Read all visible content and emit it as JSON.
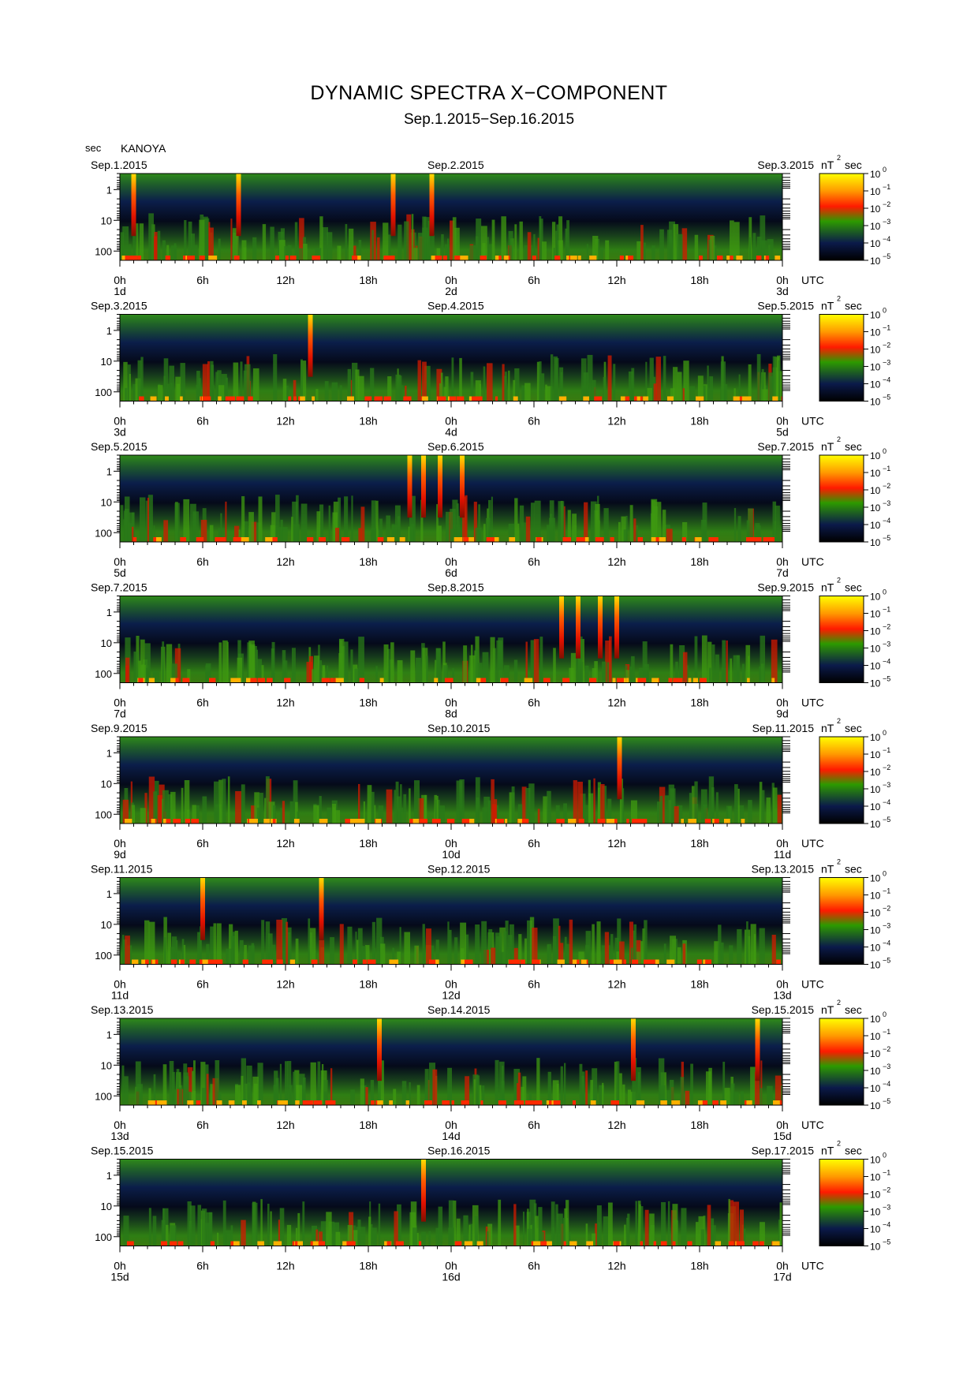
{
  "title": "DYNAMIC SPECTRA X−COMPONENT",
  "subtitle": "Sep.1.2015−Sep.16.2015",
  "unit_label": "sec",
  "station": "KANOYA",
  "colorbar": {
    "unit": "nT",
    "unit_exp": "2",
    "unit_suffix": "sec",
    "labels": [
      "10",
      "10",
      "10",
      "10",
      "10",
      "10"
    ],
    "exponents": [
      "0",
      "−1",
      "−2",
      "−3",
      "−4",
      "−5"
    ],
    "colors": [
      "#ffff00",
      "#ff9a00",
      "#ff1a00",
      "#2d9a00",
      "#0b1a4a",
      "#000000"
    ]
  },
  "chart_data": {
    "type": "heatmap",
    "y_scale": "log",
    "y_ticks": [
      "1",
      "10",
      "100"
    ],
    "x_ticks": [
      "0h",
      "6h",
      "12h",
      "18h",
      "0h",
      "6h",
      "12h",
      "18h",
      "0h"
    ],
    "x_unit": "UTC",
    "panels": [
      {
        "left_date": "Sep.1.2015",
        "mid_date": "Sep.2.2015",
        "right_date": "Sep.3.2015",
        "day_start": "1d",
        "day_mid": "2d",
        "day_end": "3d",
        "events": [
          1.0,
          8.6,
          19.8,
          22.6
        ]
      },
      {
        "left_date": "Sep.3.2015",
        "mid_date": "Sep.4.2015",
        "right_date": "Sep.5.2015",
        "day_start": "3d",
        "day_mid": "4d",
        "day_end": "5d",
        "events": [
          13.8
        ]
      },
      {
        "left_date": "Sep.5.2015",
        "mid_date": "Sep.6.2015",
        "right_date": "Sep.7.2015",
        "day_start": "5d",
        "day_mid": "6d",
        "day_end": "7d",
        "events": [
          21.0,
          22.0,
          23.2,
          24.8
        ]
      },
      {
        "left_date": "Sep.7.2015",
        "mid_date": "Sep.8.2015",
        "right_date": "Sep.9.2015",
        "day_start": "7d",
        "day_mid": "8d",
        "day_end": "9d",
        "events": [
          32.0,
          33.2,
          34.8,
          36.0
        ]
      },
      {
        "left_date": "Sep.9.2015",
        "mid_date": "Sep.10.2015",
        "right_date": "Sep.11.2015",
        "day_start": "9d",
        "day_mid": "10d",
        "day_end": "11d",
        "events": [
          36.2
        ]
      },
      {
        "left_date": "Sep.11.2015",
        "mid_date": "Sep.12.2015",
        "right_date": "Sep.13.2015",
        "day_start": "11d",
        "day_mid": "12d",
        "day_end": "13d",
        "events": [
          6.0,
          14.6
        ]
      },
      {
        "left_date": "Sep.13.2015",
        "mid_date": "Sep.14.2015",
        "right_date": "Sep.15.2015",
        "day_start": "13d",
        "day_mid": "14d",
        "day_end": "15d",
        "events": [
          18.8,
          37.2,
          46.2
        ]
      },
      {
        "left_date": "Sep.15.2015",
        "mid_date": "Sep.16.2015",
        "right_date": "Sep.17.2015",
        "day_start": "15d",
        "day_mid": "16d",
        "day_end": "17d",
        "events": [
          22.0
        ]
      }
    ]
  }
}
